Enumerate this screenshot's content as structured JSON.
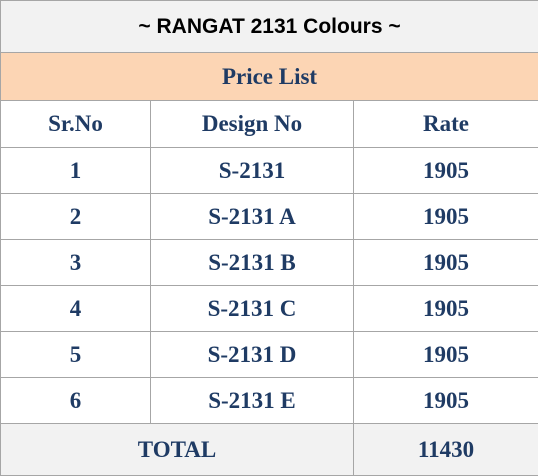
{
  "title": "~ RANGAT 2131 Colours ~",
  "subtitle": "Price List",
  "table": {
    "columns": [
      "Sr.No",
      "Design No",
      "Rate"
    ],
    "rows": [
      [
        1,
        "S-2131",
        1905
      ],
      [
        2,
        "S-2131 A",
        1905
      ],
      [
        3,
        "S-2131 B",
        1905
      ],
      [
        4,
        "S-2131 C",
        1905
      ],
      [
        5,
        "S-2131 D",
        1905
      ],
      [
        6,
        "S-2131 E",
        1905
      ]
    ],
    "total": {
      "label": "TOTAL",
      "value": 11430
    }
  }
}
